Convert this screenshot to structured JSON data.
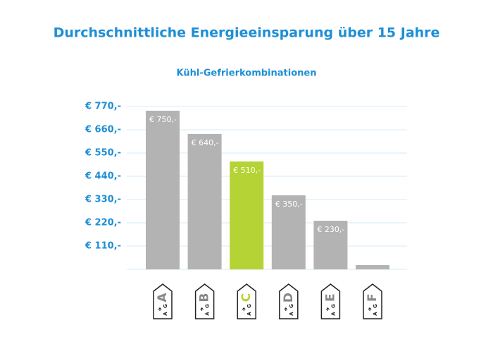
{
  "chart_data": {
    "type": "bar",
    "title": "Durchschnittliche Energieeinsparung über 15 Jahre",
    "subtitle": "Kühl-Gefrierkombinationen",
    "categories": [
      "A",
      "B",
      "C",
      "D",
      "E",
      "F"
    ],
    "values": [
      750,
      640,
      510,
      350,
      230,
      20
    ],
    "value_labels": [
      "€ 750,-",
      "€ 640,-",
      "€ 510,-",
      "€ 350,-",
      "€ 230,-",
      null
    ],
    "colors": [
      "#b3b3b3",
      "#b3b3b3",
      "#b5d334",
      "#b3b3b3",
      "#b3b3b3",
      "#b3b3b3"
    ],
    "label_scale": [
      "A",
      "G"
    ],
    "ylim": [
      0,
      770
    ],
    "yticks": [
      {
        "value": 110,
        "label": "€ 110,-"
      },
      {
        "value": 220,
        "label": "€ 220,-"
      },
      {
        "value": 330,
        "label": "€ 330,-"
      },
      {
        "value": 440,
        "label": "€ 440,-"
      },
      {
        "value": 550,
        "label": "€ 550,-"
      },
      {
        "value": 660,
        "label": "€ 660,-"
      },
      {
        "value": 770,
        "label": "€ 770,-"
      }
    ],
    "grid": true
  }
}
